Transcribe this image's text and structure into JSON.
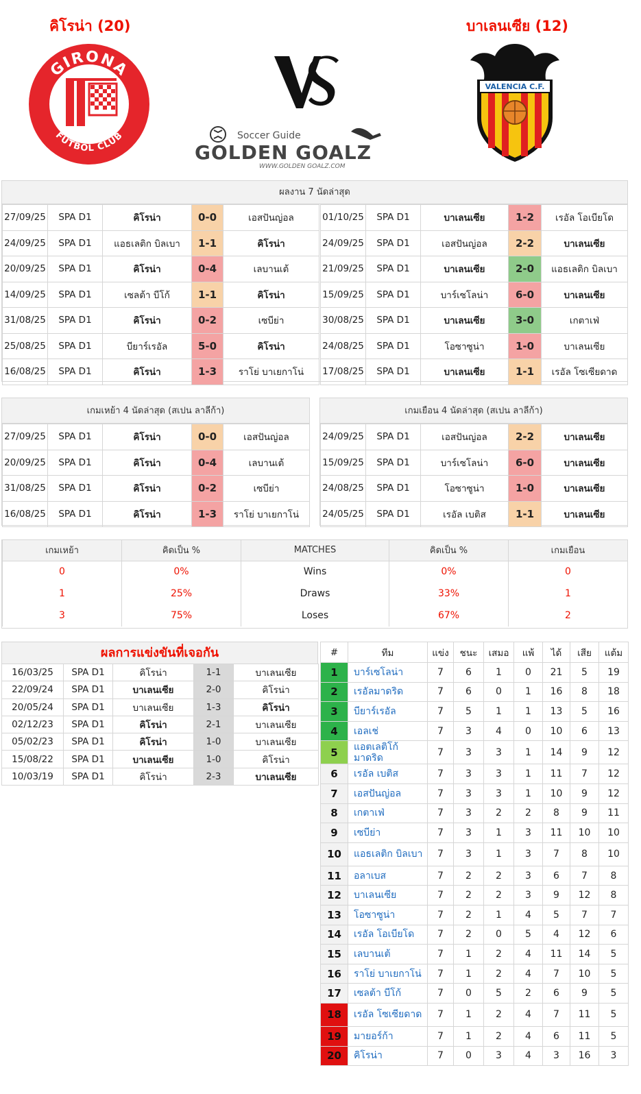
{
  "header": {
    "home_title": "คิโรน่า (20)",
    "away_title": "บาเลนเซีย (12)",
    "home_logo_text_top": "GIRONA",
    "home_logo_text_bottom": "FUTBOL CLUB",
    "away_logo_text": "VALENCIA C.F.",
    "vs_text": "VS",
    "brand_small": "Soccer Guide",
    "brand_main": "GOLDEN GOALZ",
    "brand_url": "WWW.GOLDEN GOALZ.COM"
  },
  "colors": {
    "accent_red": "#ee1100",
    "win": "#8fcb8a",
    "draw": "#f8d2a8",
    "loss": "#f4a3a3",
    "link_blue": "#1e6bbf"
  },
  "last7": {
    "title": "ผลงาน 7 นัดล่าสุด",
    "home": [
      {
        "date": "27/09/25",
        "league": "SPA D1",
        "home": "คิโรน่า",
        "score": "0-0",
        "away": "เอสปันญ่อล",
        "bold": "home",
        "result": "d"
      },
      {
        "date": "24/09/25",
        "league": "SPA D1",
        "home": "แอธเลติก บิลเบา",
        "score": "1-1",
        "away": "คิโรน่า",
        "bold": "away",
        "result": "d"
      },
      {
        "date": "20/09/25",
        "league": "SPA D1",
        "home": "คิโรน่า",
        "score": "0-4",
        "away": "เลบานเต้",
        "bold": "home",
        "result": "l"
      },
      {
        "date": "14/09/25",
        "league": "SPA D1",
        "home": "เซลต้า บีโก้",
        "score": "1-1",
        "away": "คิโรน่า",
        "bold": "away",
        "result": "d"
      },
      {
        "date": "31/08/25",
        "league": "SPA D1",
        "home": "คิโรน่า",
        "score": "0-2",
        "away": "เซบีย่า",
        "bold": "home",
        "result": "l"
      },
      {
        "date": "25/08/25",
        "league": "SPA D1",
        "home": "บียาร์เรอัล",
        "score": "5-0",
        "away": "คิโรน่า",
        "bold": "away",
        "result": "l"
      },
      {
        "date": "16/08/25",
        "league": "SPA D1",
        "home": "คิโรน่า",
        "score": "1-3",
        "away": "ราโย่ บาเยกาโน่",
        "bold": "home",
        "result": "l"
      }
    ],
    "away": [
      {
        "date": "01/10/25",
        "league": "SPA D1",
        "home": "บาเลนเซีย",
        "score": "1-2",
        "away": "เรอัล โอเบียโด",
        "bold": "home",
        "result": "l"
      },
      {
        "date": "24/09/25",
        "league": "SPA D1",
        "home": "เอสปันญ่อล",
        "score": "2-2",
        "away": "บาเลนเซีย",
        "bold": "away",
        "result": "d"
      },
      {
        "date": "21/09/25",
        "league": "SPA D1",
        "home": "บาเลนเซีย",
        "score": "2-0",
        "away": "แอธเลติก บิลเบา",
        "bold": "home",
        "result": "w"
      },
      {
        "date": "15/09/25",
        "league": "SPA D1",
        "home": "บาร์เซโลน่า",
        "score": "6-0",
        "away": "บาเลนเซีย",
        "bold": "away",
        "result": "l"
      },
      {
        "date": "30/08/25",
        "league": "SPA D1",
        "home": "บาเลนเซีย",
        "score": "3-0",
        "away": "เกตาเฟ่",
        "bold": "home",
        "result": "w"
      },
      {
        "date": "24/08/25",
        "league": "SPA D1",
        "home": "โอซาซูน่า",
        "score": "1-0",
        "away": "บาเลนเซีย",
        "bold": "none",
        "result": "l"
      },
      {
        "date": "17/08/25",
        "league": "SPA D1",
        "home": "บาเลนเซีย",
        "score": "1-1",
        "away": "เรอัล โซเซียดาด",
        "bold": "home",
        "result": "d"
      }
    ]
  },
  "last4": {
    "home_title": "เกมเหย้า 4 นัดล่าสุด (สเปน ลาลีก้า)",
    "away_title": "เกมเยือน 4 นัดล่าสุด (สเปน ลาลีก้า)",
    "home": [
      {
        "date": "27/09/25",
        "league": "SPA D1",
        "home": "คิโรน่า",
        "score": "0-0",
        "away": "เอสปันญ่อล",
        "bold": "home",
        "result": "d"
      },
      {
        "date": "20/09/25",
        "league": "SPA D1",
        "home": "คิโรน่า",
        "score": "0-4",
        "away": "เลบานเต้",
        "bold": "home",
        "result": "l"
      },
      {
        "date": "31/08/25",
        "league": "SPA D1",
        "home": "คิโรน่า",
        "score": "0-2",
        "away": "เซบีย่า",
        "bold": "home",
        "result": "l"
      },
      {
        "date": "16/08/25",
        "league": "SPA D1",
        "home": "คิโรน่า",
        "score": "1-3",
        "away": "ราโย่ บาเยกาโน่",
        "bold": "home",
        "result": "l"
      }
    ],
    "away": [
      {
        "date": "24/09/25",
        "league": "SPA D1",
        "home": "เอสปันญ่อล",
        "score": "2-2",
        "away": "บาเลนเซีย",
        "bold": "away",
        "result": "d"
      },
      {
        "date": "15/09/25",
        "league": "SPA D1",
        "home": "บาร์เซโลน่า",
        "score": "6-0",
        "away": "บาเลนเซีย",
        "bold": "away",
        "result": "l"
      },
      {
        "date": "24/08/25",
        "league": "SPA D1",
        "home": "โอซาซูน่า",
        "score": "1-0",
        "away": "บาเลนเซีย",
        "bold": "away",
        "result": "l"
      },
      {
        "date": "24/05/25",
        "league": "SPA D1",
        "home": "เรอัล เบติส",
        "score": "1-1",
        "away": "บาเลนเซีย",
        "bold": "away",
        "result": "d"
      }
    ]
  },
  "stats": {
    "headers": [
      "เกมเหย้า",
      "คิดเป็น %",
      "MATCHES",
      "คิดเป็น %",
      "เกมเยือน"
    ],
    "rows": [
      {
        "home": "0",
        "home_pct": "0%",
        "label": "Wins",
        "away_pct": "0%",
        "away": "0"
      },
      {
        "home": "1",
        "home_pct": "25%",
        "label": "Draws",
        "away_pct": "33%",
        "away": "1"
      },
      {
        "home": "3",
        "home_pct": "75%",
        "label": "Loses",
        "away_pct": "67%",
        "away": "2"
      }
    ]
  },
  "h2h": {
    "title": "ผลการแข่งขันที่เจอกัน",
    "rows": [
      {
        "date": "16/03/25",
        "league": "SPA D1",
        "home": "คิโรน่า",
        "score": "1-1",
        "away": "บาเลนเซีย",
        "bold": "none"
      },
      {
        "date": "22/09/24",
        "league": "SPA D1",
        "home": "บาเลนเซีย",
        "score": "2-0",
        "away": "คิโรน่า",
        "bold": "home"
      },
      {
        "date": "20/05/24",
        "league": "SPA D1",
        "home": "บาเลนเซีย",
        "score": "1-3",
        "away": "คิโรน่า",
        "bold": "away"
      },
      {
        "date": "02/12/23",
        "league": "SPA D1",
        "home": "คิโรน่า",
        "score": "2-1",
        "away": "บาเลนเซีย",
        "bold": "home"
      },
      {
        "date": "05/02/23",
        "league": "SPA D1",
        "home": "คิโรน่า",
        "score": "1-0",
        "away": "บาเลนเซีย",
        "bold": "home"
      },
      {
        "date": "15/08/22",
        "league": "SPA D1",
        "home": "บาเลนเซีย",
        "score": "1-0",
        "away": "คิโรน่า",
        "bold": "home"
      },
      {
        "date": "10/03/19",
        "league": "SPA D1",
        "home": "คิโรน่า",
        "score": "2-3",
        "away": "บาเลนเซีย",
        "bold": "away"
      }
    ]
  },
  "standings": {
    "headers": [
      "#",
      "ทีม",
      "แข่ง",
      "ชนะ",
      "เสมอ",
      "แพ้",
      "ได้",
      "เสีย",
      "แต้ม"
    ],
    "rows": [
      {
        "pos": "1",
        "team": "บาร์เซโลน่า",
        "p": "7",
        "w": "6",
        "d": "1",
        "l": "0",
        "gf": "21",
        "ga": "5",
        "pts": "19",
        "zone": "cl"
      },
      {
        "pos": "2",
        "team": "เรอัลมาดริด",
        "p": "7",
        "w": "6",
        "d": "0",
        "l": "1",
        "gf": "16",
        "ga": "8",
        "pts": "18",
        "zone": "cl"
      },
      {
        "pos": "3",
        "team": "บียาร์เรอัล",
        "p": "7",
        "w": "5",
        "d": "1",
        "l": "1",
        "gf": "13",
        "ga": "5",
        "pts": "16",
        "zone": "cl"
      },
      {
        "pos": "4",
        "team": "เอลเช่",
        "p": "7",
        "w": "3",
        "d": "4",
        "l": "0",
        "gf": "10",
        "ga": "6",
        "pts": "13",
        "zone": "cl"
      },
      {
        "pos": "5",
        "team": "แอตเลติโก้ มาดริด",
        "p": "7",
        "w": "3",
        "d": "3",
        "l": "1",
        "gf": "14",
        "ga": "9",
        "pts": "12",
        "zone": "el"
      },
      {
        "pos": "6",
        "team": "เรอัล เบติส",
        "p": "7",
        "w": "3",
        "d": "3",
        "l": "1",
        "gf": "11",
        "ga": "7",
        "pts": "12",
        "zone": "none"
      },
      {
        "pos": "7",
        "team": "เอสปันญ่อล",
        "p": "7",
        "w": "3",
        "d": "3",
        "l": "1",
        "gf": "10",
        "ga": "9",
        "pts": "12",
        "zone": "none"
      },
      {
        "pos": "8",
        "team": "เกตาเฟ่",
        "p": "7",
        "w": "3",
        "d": "2",
        "l": "2",
        "gf": "8",
        "ga": "9",
        "pts": "11",
        "zone": "none"
      },
      {
        "pos": "9",
        "team": "เซบีย่า",
        "p": "7",
        "w": "3",
        "d": "1",
        "l": "3",
        "gf": "11",
        "ga": "10",
        "pts": "10",
        "zone": "none"
      },
      {
        "pos": "10",
        "team": "แอธเลติก บิลเบา",
        "p": "7",
        "w": "3",
        "d": "1",
        "l": "3",
        "gf": "7",
        "ga": "8",
        "pts": "10",
        "zone": "none"
      },
      {
        "pos": "11",
        "team": "อลาเบส",
        "p": "7",
        "w": "2",
        "d": "2",
        "l": "3",
        "gf": "6",
        "ga": "7",
        "pts": "8",
        "zone": "none"
      },
      {
        "pos": "12",
        "team": "บาเลนเซีย",
        "p": "7",
        "w": "2",
        "d": "2",
        "l": "3",
        "gf": "9",
        "ga": "12",
        "pts": "8",
        "zone": "none"
      },
      {
        "pos": "13",
        "team": "โอซาซูน่า",
        "p": "7",
        "w": "2",
        "d": "1",
        "l": "4",
        "gf": "5",
        "ga": "7",
        "pts": "7",
        "zone": "none"
      },
      {
        "pos": "14",
        "team": "เรอัล โอเบียโด",
        "p": "7",
        "w": "2",
        "d": "0",
        "l": "5",
        "gf": "4",
        "ga": "12",
        "pts": "6",
        "zone": "none"
      },
      {
        "pos": "15",
        "team": "เลบานเต้",
        "p": "7",
        "w": "1",
        "d": "2",
        "l": "4",
        "gf": "11",
        "ga": "14",
        "pts": "5",
        "zone": "none"
      },
      {
        "pos": "16",
        "team": "ราโย่ บาเยกาโน่",
        "p": "7",
        "w": "1",
        "d": "2",
        "l": "4",
        "gf": "7",
        "ga": "10",
        "pts": "5",
        "zone": "none"
      },
      {
        "pos": "17",
        "team": "เซลต้า บีโก้",
        "p": "7",
        "w": "0",
        "d": "5",
        "l": "2",
        "gf": "6",
        "ga": "9",
        "pts": "5",
        "zone": "none"
      },
      {
        "pos": "18",
        "team": "เรอัล โซเซียดาด",
        "p": "7",
        "w": "1",
        "d": "2",
        "l": "4",
        "gf": "7",
        "ga": "11",
        "pts": "5",
        "zone": "rel"
      },
      {
        "pos": "19",
        "team": "มายอร์ก้า",
        "p": "7",
        "w": "1",
        "d": "2",
        "l": "4",
        "gf": "6",
        "ga": "11",
        "pts": "5",
        "zone": "rel"
      },
      {
        "pos": "20",
        "team": "คิโรน่า",
        "p": "7",
        "w": "0",
        "d": "3",
        "l": "4",
        "gf": "3",
        "ga": "16",
        "pts": "3",
        "zone": "rel"
      }
    ]
  }
}
